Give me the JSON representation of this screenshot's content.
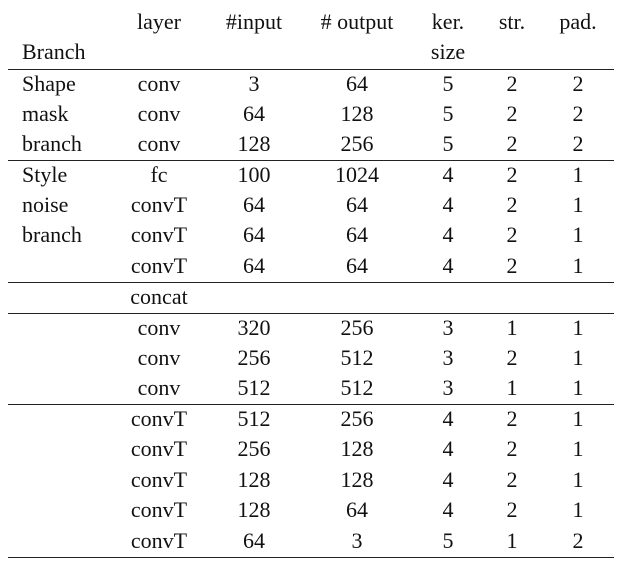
{
  "header": {
    "branch": "Branch",
    "layer": "layer",
    "input": "#input",
    "output": "# output",
    "kernel_line1": "ker.",
    "kernel_line2": "size",
    "stride": "str.",
    "padding": "pad."
  },
  "rows": [
    {
      "branch": "Shape",
      "layer": "conv",
      "input": "3",
      "output": "64",
      "kernel": "5",
      "stride": "2",
      "padding": "2"
    },
    {
      "branch": "mask",
      "layer": "conv",
      "input": "64",
      "output": "128",
      "kernel": "5",
      "stride": "2",
      "padding": "2"
    },
    {
      "branch": "branch",
      "layer": "conv",
      "input": "128",
      "output": "256",
      "kernel": "5",
      "stride": "2",
      "padding": "2"
    },
    {
      "branch": "Style",
      "layer": "fc",
      "input": "100",
      "output": "1024",
      "kernel": "4",
      "stride": "2",
      "padding": "1"
    },
    {
      "branch": "noise",
      "layer": "convT",
      "input": "64",
      "output": "64",
      "kernel": "4",
      "stride": "2",
      "padding": "1"
    },
    {
      "branch": "branch",
      "layer": "convT",
      "input": "64",
      "output": "64",
      "kernel": "4",
      "stride": "2",
      "padding": "1"
    },
    {
      "branch": "",
      "layer": "convT",
      "input": "64",
      "output": "64",
      "kernel": "4",
      "stride": "2",
      "padding": "1"
    },
    {
      "branch": "",
      "layer": "concat",
      "input": "",
      "output": "",
      "kernel": "",
      "stride": "",
      "padding": ""
    },
    {
      "branch": "",
      "layer": "conv",
      "input": "320",
      "output": "256",
      "kernel": "3",
      "stride": "1",
      "padding": "1"
    },
    {
      "branch": "",
      "layer": "conv",
      "input": "256",
      "output": "512",
      "kernel": "3",
      "stride": "2",
      "padding": "1"
    },
    {
      "branch": "",
      "layer": "conv",
      "input": "512",
      "output": "512",
      "kernel": "3",
      "stride": "1",
      "padding": "1"
    },
    {
      "branch": "",
      "layer": "convT",
      "input": "512",
      "output": "256",
      "kernel": "4",
      "stride": "2",
      "padding": "1"
    },
    {
      "branch": "",
      "layer": "convT",
      "input": "256",
      "output": "128",
      "kernel": "4",
      "stride": "2",
      "padding": "1"
    },
    {
      "branch": "",
      "layer": "convT",
      "input": "128",
      "output": "128",
      "kernel": "4",
      "stride": "2",
      "padding": "1"
    },
    {
      "branch": "",
      "layer": "convT",
      "input": "128",
      "output": "64",
      "kernel": "4",
      "stride": "2",
      "padding": "1"
    },
    {
      "branch": "",
      "layer": "convT",
      "input": "64",
      "output": "3",
      "kernel": "5",
      "stride": "1",
      "padding": "2"
    }
  ]
}
